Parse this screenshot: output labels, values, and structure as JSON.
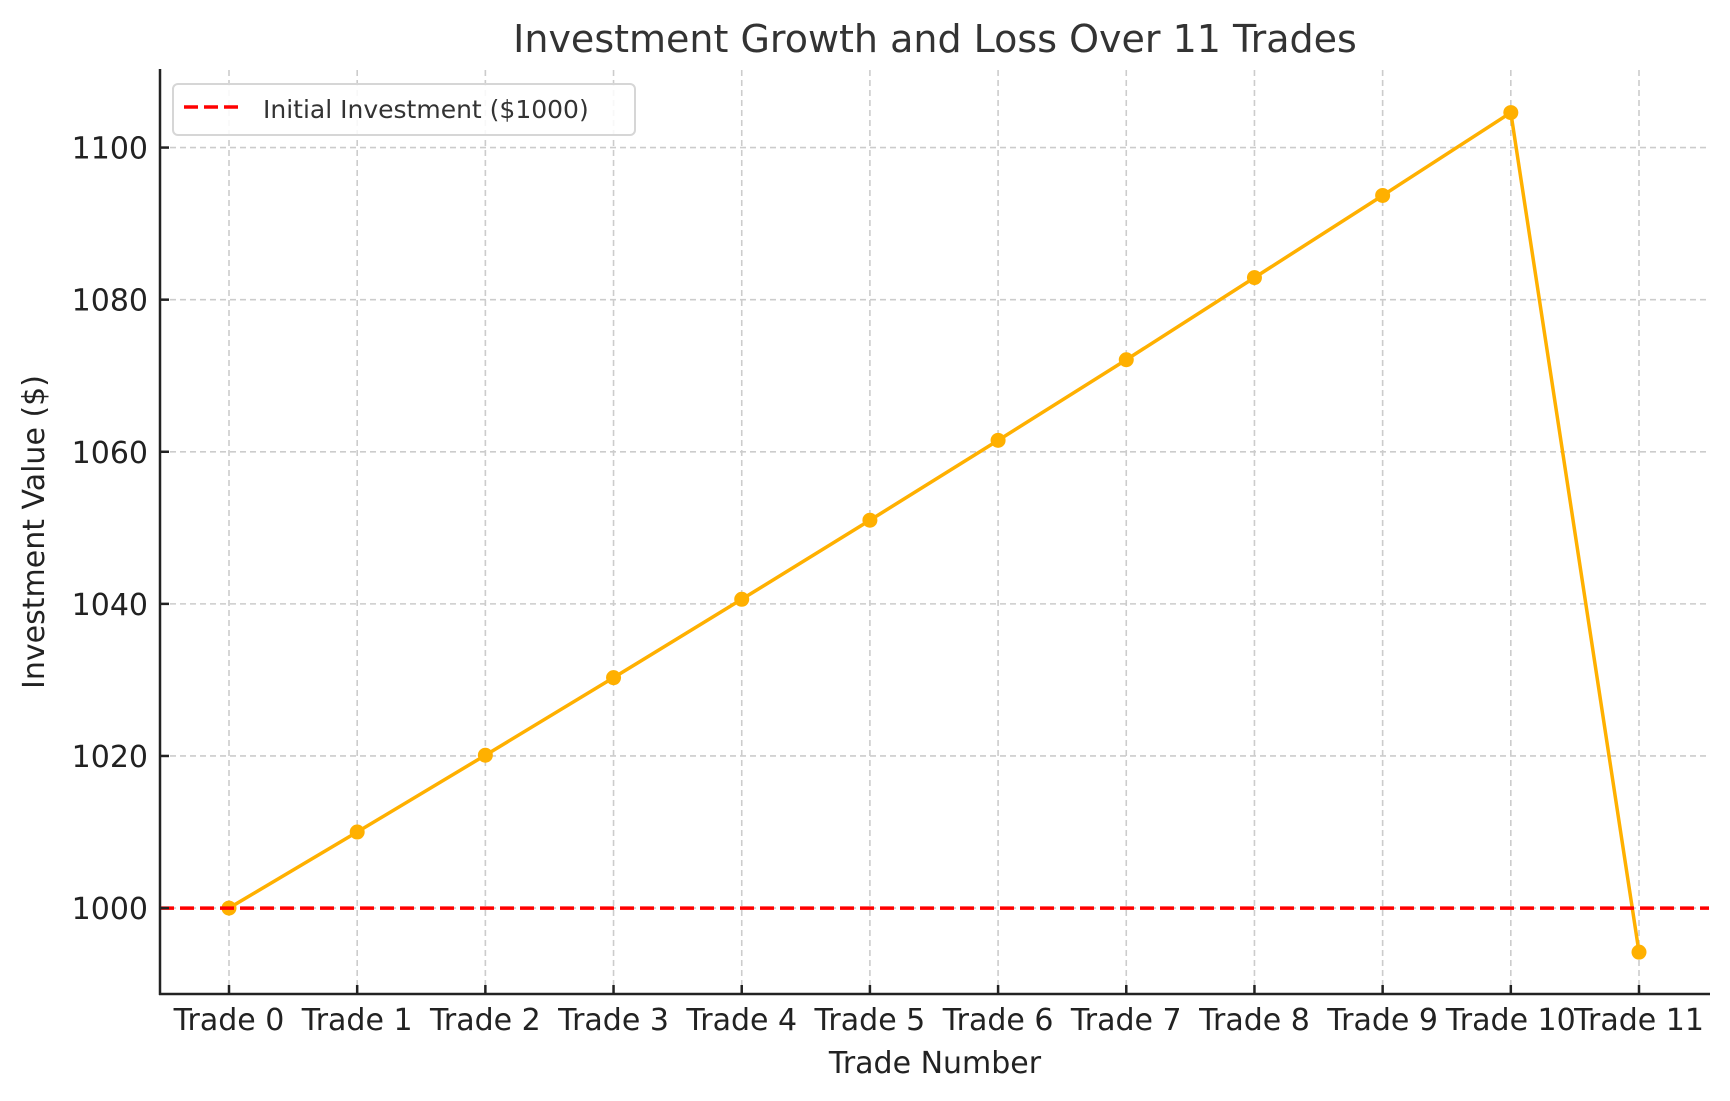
{
  "chart_data": {
    "type": "line",
    "title": "Investment Growth and Loss Over 11 Trades",
    "xlabel": "Trade Number",
    "ylabel": "Investment Value ($)",
    "categories": [
      "Trade 0",
      "Trade 1",
      "Trade 2",
      "Trade 3",
      "Trade 4",
      "Trade 5",
      "Trade 6",
      "Trade 7",
      "Trade 8",
      "Trade 9",
      "Trade 10",
      "Trade 11"
    ],
    "series": [
      {
        "name": "Investment Value",
        "color": "#FFB000",
        "marker": "circle",
        "values": [
          1000.0,
          1010.0,
          1020.1,
          1030.3,
          1040.6,
          1051.0,
          1061.5,
          1072.1,
          1082.9,
          1093.7,
          1104.6,
          994.2
        ]
      }
    ],
    "reference_lines": [
      {
        "name": "Initial Investment ($1000)",
        "y": 1000,
        "color": "#FF0000",
        "style": "dashed"
      }
    ],
    "legend": {
      "position": "upper left",
      "entries": [
        "Initial Investment ($1000)"
      ]
    },
    "yticks": [
      1000,
      1020,
      1040,
      1060,
      1080,
      1100
    ],
    "ylim": [
      988.7,
      1110.2
    ],
    "grid": true
  }
}
